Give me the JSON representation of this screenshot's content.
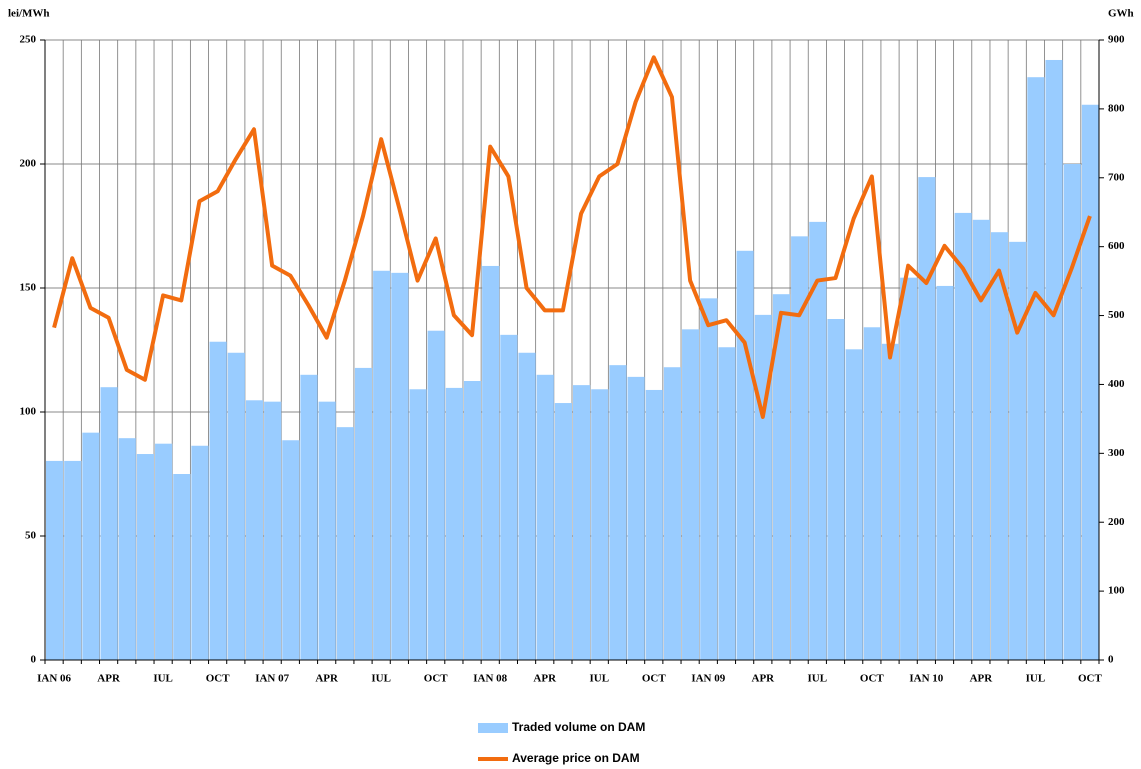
{
  "chart_data": {
    "type": "combo",
    "y_label": "lei/MWh",
    "y2_label": "GWh",
    "categories": [
      "IAN 06",
      null,
      null,
      "APR",
      null,
      null,
      "IUL",
      null,
      null,
      "OCT",
      null,
      null,
      "IAN 07",
      null,
      null,
      "APR",
      null,
      null,
      "IUL",
      null,
      null,
      "OCT",
      null,
      null,
      "IAN 08",
      null,
      null,
      "APR",
      null,
      null,
      "IUL",
      null,
      null,
      "OCT",
      null,
      null,
      "IAN 09",
      null,
      null,
      "APR",
      null,
      null,
      "IUL",
      null,
      null,
      "OCT",
      null,
      null,
      "IAN 10",
      null,
      null,
      "APR",
      null,
      null,
      "IUL",
      null,
      null,
      "OCT"
    ],
    "series": [
      {
        "name": "Traded volume on DAM",
        "type": "bar",
        "axis": "y2",
        "color": "#99ccff",
        "values": [
          289,
          289,
          330,
          396,
          322,
          299,
          314,
          270,
          311,
          462,
          446,
          377,
          375,
          319,
          414,
          375,
          338,
          424,
          565,
          562,
          393,
          478,
          395,
          405,
          572,
          472,
          446,
          414,
          373,
          399,
          393,
          428,
          411,
          392,
          425,
          480,
          525,
          454,
          594,
          501,
          531,
          615,
          636,
          495,
          451,
          483,
          459,
          555,
          701,
          543,
          649,
          639,
          621,
          607,
          846,
          871,
          720,
          806
        ]
      },
      {
        "name": "Average price on DAM",
        "type": "line",
        "color": "#f26c0f",
        "values": [
          134,
          162,
          142,
          138,
          117,
          113,
          147,
          145,
          185,
          189,
          202,
          214,
          159,
          155,
          143,
          130,
          153,
          179,
          210,
          182,
          153,
          170,
          139,
          131,
          207,
          195,
          150,
          141,
          141,
          180,
          195,
          200,
          225,
          243,
          227,
          153,
          135,
          137,
          128,
          98,
          140,
          139,
          153,
          154,
          178,
          195,
          122,
          159,
          152,
          167,
          158,
          145,
          157,
          132,
          148,
          139,
          158,
          179
        ]
      }
    ],
    "ylim": [
      0,
      250
    ],
    "yticks": [
      0,
      50,
      100,
      150,
      200,
      250
    ],
    "y2lim": [
      0,
      900
    ],
    "y2ticks": [
      0,
      100,
      200,
      300,
      400,
      500,
      600,
      700,
      800,
      900
    ],
    "grid": true
  }
}
